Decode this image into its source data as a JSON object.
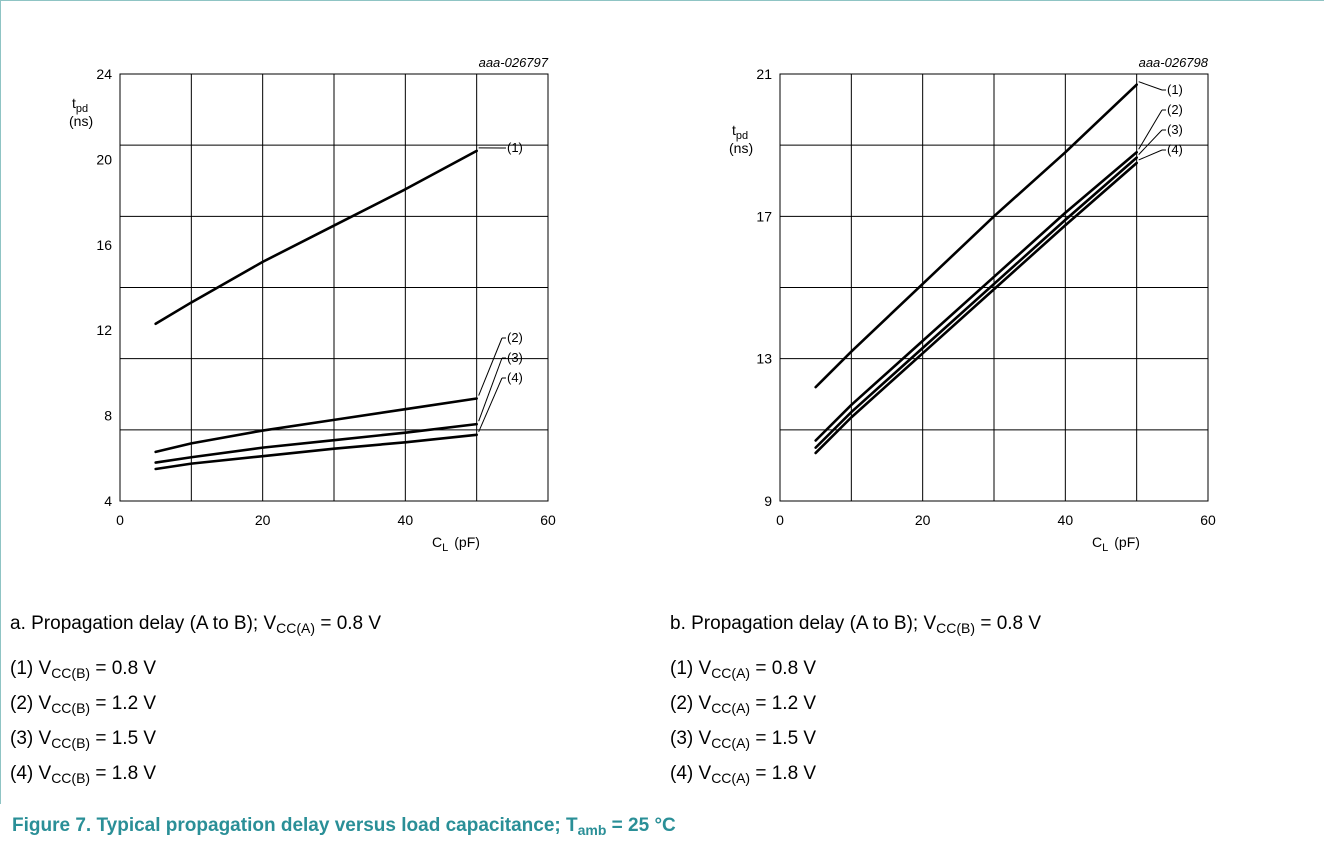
{
  "chart_data": [
    {
      "type": "line",
      "code": "aaa-026797",
      "ylabel_main": "t",
      "ylabel_sub": "pd",
      "ylabel_unit": "(ns)",
      "xlabel_main": "C",
      "xlabel_sub": "L",
      "xlabel_unit": "(pF)",
      "xlim": [
        0,
        60
      ],
      "ylim": [
        4,
        24
      ],
      "x_ticks": [
        0,
        20,
        40,
        60
      ],
      "y_ticks": [
        4,
        8,
        12,
        16,
        20,
        24
      ],
      "grid": true,
      "series": [
        {
          "name": "(1)",
          "x": [
            5,
            10,
            20,
            30,
            40,
            50
          ],
          "y": [
            12.3,
            13.3,
            15.2,
            16.9,
            18.6,
            20.4
          ]
        },
        {
          "name": "(2)",
          "x": [
            5,
            10,
            20,
            30,
            40,
            50
          ],
          "y": [
            6.3,
            6.7,
            7.3,
            7.8,
            8.3,
            8.8
          ]
        },
        {
          "name": "(3)",
          "x": [
            5,
            10,
            20,
            30,
            40,
            50
          ],
          "y": [
            5.8,
            6.05,
            6.5,
            6.85,
            7.2,
            7.6
          ]
        },
        {
          "name": "(4)",
          "x": [
            5,
            10,
            20,
            30,
            40,
            50
          ],
          "y": [
            5.5,
            5.75,
            6.1,
            6.45,
            6.75,
            7.1
          ]
        }
      ]
    },
    {
      "type": "line",
      "code": "aaa-026798",
      "ylabel_main": "t",
      "ylabel_sub": "pd",
      "ylabel_unit": "(ns)",
      "xlabel_main": "C",
      "xlabel_sub": "L",
      "xlabel_unit": "(pF)",
      "xlim": [
        0,
        60
      ],
      "ylim": [
        9,
        21
      ],
      "x_ticks": [
        0,
        20,
        40,
        60
      ],
      "y_ticks": [
        9,
        13,
        17,
        21
      ],
      "grid": true,
      "series": [
        {
          "name": "(1)",
          "x": [
            5,
            10,
            20,
            30,
            40,
            50
          ],
          "y": [
            12.2,
            13.2,
            15.1,
            17.0,
            18.8,
            20.7
          ]
        },
        {
          "name": "(2)",
          "x": [
            5,
            10,
            20,
            30,
            40,
            50
          ],
          "y": [
            10.7,
            11.7,
            13.5,
            15.3,
            17.1,
            18.8
          ]
        },
        {
          "name": "(3)",
          "x": [
            5,
            10,
            20,
            30,
            40,
            50
          ],
          "y": [
            10.5,
            11.5,
            13.3,
            15.1,
            16.9,
            18.65
          ]
        },
        {
          "name": "(4)",
          "x": [
            5,
            10,
            20,
            30,
            40,
            50
          ],
          "y": [
            10.35,
            11.35,
            13.15,
            14.95,
            16.75,
            18.5
          ]
        }
      ]
    }
  ],
  "captions": {
    "a": {
      "lead": "a. Propagation delay (A to B); V",
      "sub": "CC(A)",
      "tail": " = 0.8 V"
    },
    "b": {
      "lead": "b. Propagation delay (A to B); V",
      "sub": "CC(B)",
      "tail": " = 0.8 V"
    }
  },
  "legend_a": [
    {
      "lead": "(1) V",
      "sub": "CC(B)",
      "tail": " = 0.8 V"
    },
    {
      "lead": "(2) V",
      "sub": "CC(B)",
      "tail": " = 1.2 V"
    },
    {
      "lead": "(3) V",
      "sub": "CC(B)",
      "tail": " = 1.5 V"
    },
    {
      "lead": "(4) V",
      "sub": "CC(B)",
      "tail": " = 1.8 V"
    }
  ],
  "legend_b": [
    {
      "lead": "(1) V",
      "sub": "CC(A)",
      "tail": " = 0.8 V"
    },
    {
      "lead": "(2) V",
      "sub": "CC(A)",
      "tail": " = 1.2 V"
    },
    {
      "lead": "(3) V",
      "sub": "CC(A)",
      "tail": " = 1.5 V"
    },
    {
      "lead": "(4) V",
      "sub": "CC(A)",
      "tail": " = 1.8 V"
    }
  ],
  "figure_title": {
    "lead": "Figure 7.   Typical propagation delay versus load capacitance; T",
    "sub": "amb",
    "tail": " = 25 °C"
  },
  "colors": {
    "frame": "#8fc4c4",
    "title": "#2a8f97",
    "line": "#000000",
    "grid": "#000000"
  }
}
